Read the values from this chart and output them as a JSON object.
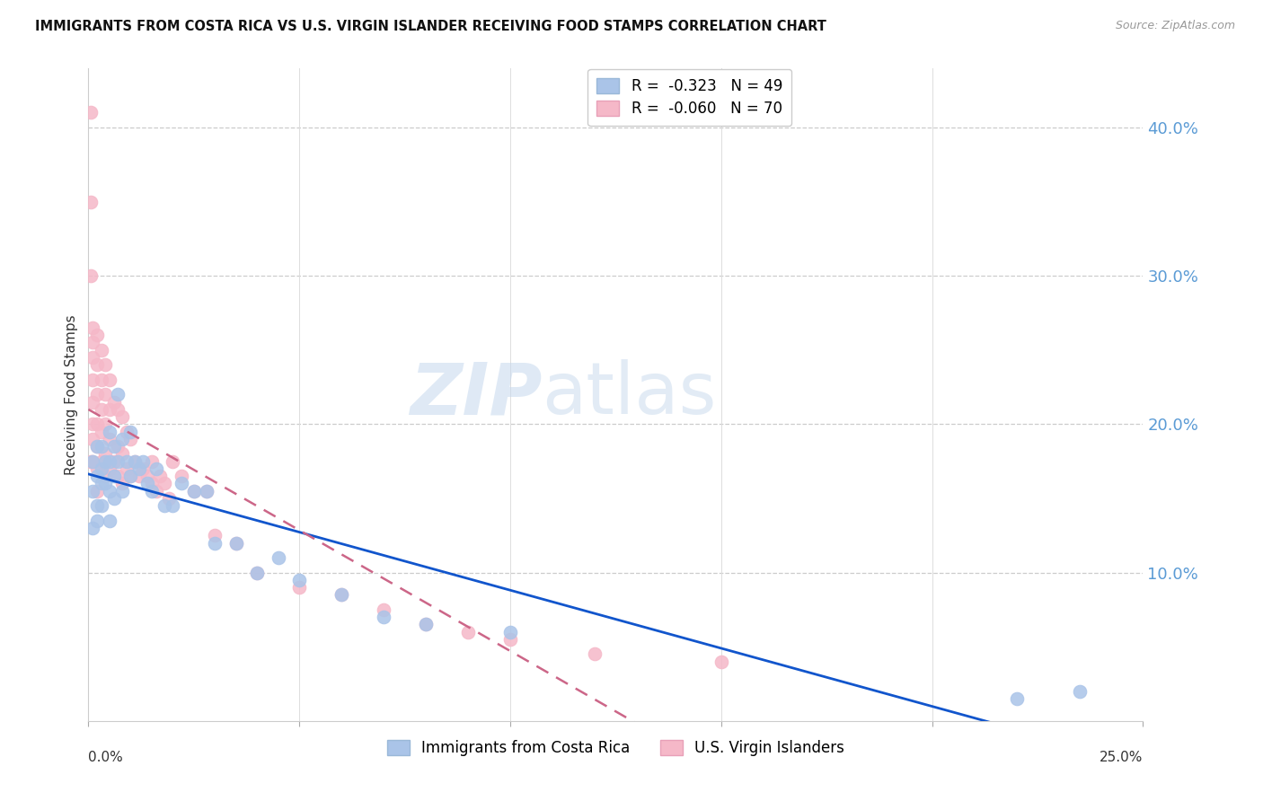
{
  "title": "IMMIGRANTS FROM COSTA RICA VS U.S. VIRGIN ISLANDER RECEIVING FOOD STAMPS CORRELATION CHART",
  "source": "Source: ZipAtlas.com",
  "ylabel": "Receiving Food Stamps",
  "y_ticks_right_vals": [
    0.1,
    0.2,
    0.3,
    0.4
  ],
  "y_ticks_right_labels": [
    "10.0%",
    "20.0%",
    "30.0%",
    "40.0%"
  ],
  "xlim": [
    0.0,
    0.25
  ],
  "ylim": [
    0.0,
    0.44
  ],
  "costa_rica_color": "#aac4e8",
  "virgin_color": "#f5b8c8",
  "costa_rica_line_color": "#1155cc",
  "virgin_line_color": "#cc6688",
  "costa_rica_R": -0.323,
  "costa_rica_N": 49,
  "virgin_R": -0.06,
  "virgin_N": 70,
  "watermark_zip": "ZIP",
  "watermark_atlas": "atlas",
  "background_color": "#ffffff",
  "costa_rica_x": [
    0.001,
    0.001,
    0.001,
    0.002,
    0.002,
    0.002,
    0.002,
    0.003,
    0.003,
    0.003,
    0.003,
    0.004,
    0.004,
    0.005,
    0.005,
    0.005,
    0.005,
    0.006,
    0.006,
    0.006,
    0.007,
    0.007,
    0.008,
    0.008,
    0.009,
    0.01,
    0.01,
    0.011,
    0.012,
    0.013,
    0.014,
    0.015,
    0.016,
    0.018,
    0.02,
    0.022,
    0.025,
    0.028,
    0.03,
    0.035,
    0.04,
    0.045,
    0.05,
    0.06,
    0.07,
    0.08,
    0.1,
    0.22,
    0.235
  ],
  "costa_rica_y": [
    0.175,
    0.155,
    0.13,
    0.185,
    0.165,
    0.145,
    0.135,
    0.185,
    0.17,
    0.16,
    0.145,
    0.175,
    0.16,
    0.195,
    0.175,
    0.155,
    0.135,
    0.185,
    0.165,
    0.15,
    0.22,
    0.175,
    0.19,
    0.155,
    0.175,
    0.195,
    0.165,
    0.175,
    0.17,
    0.175,
    0.16,
    0.155,
    0.17,
    0.145,
    0.145,
    0.16,
    0.155,
    0.155,
    0.12,
    0.12,
    0.1,
    0.11,
    0.095,
    0.085,
    0.07,
    0.065,
    0.06,
    0.015,
    0.02
  ],
  "virgin_x": [
    0.0005,
    0.0005,
    0.0005,
    0.0005,
    0.001,
    0.001,
    0.001,
    0.001,
    0.001,
    0.001,
    0.001,
    0.001,
    0.002,
    0.002,
    0.002,
    0.002,
    0.002,
    0.002,
    0.002,
    0.003,
    0.003,
    0.003,
    0.003,
    0.003,
    0.004,
    0.004,
    0.004,
    0.004,
    0.004,
    0.005,
    0.005,
    0.005,
    0.005,
    0.006,
    0.006,
    0.007,
    0.007,
    0.007,
    0.008,
    0.008,
    0.008,
    0.009,
    0.009,
    0.01,
    0.01,
    0.011,
    0.012,
    0.013,
    0.014,
    0.015,
    0.015,
    0.016,
    0.017,
    0.018,
    0.019,
    0.02,
    0.022,
    0.025,
    0.028,
    0.03,
    0.035,
    0.04,
    0.05,
    0.06,
    0.07,
    0.08,
    0.09,
    0.1,
    0.12,
    0.15
  ],
  "virgin_y": [
    0.41,
    0.35,
    0.3,
    0.175,
    0.265,
    0.255,
    0.245,
    0.23,
    0.215,
    0.2,
    0.19,
    0.175,
    0.26,
    0.24,
    0.22,
    0.2,
    0.185,
    0.17,
    0.155,
    0.25,
    0.23,
    0.21,
    0.195,
    0.175,
    0.24,
    0.22,
    0.2,
    0.18,
    0.165,
    0.23,
    0.21,
    0.19,
    0.17,
    0.215,
    0.175,
    0.21,
    0.185,
    0.165,
    0.205,
    0.18,
    0.16,
    0.195,
    0.17,
    0.19,
    0.165,
    0.175,
    0.165,
    0.17,
    0.165,
    0.175,
    0.16,
    0.155,
    0.165,
    0.16,
    0.15,
    0.175,
    0.165,
    0.155,
    0.155,
    0.125,
    0.12,
    0.1,
    0.09,
    0.085,
    0.075,
    0.065,
    0.06,
    0.055,
    0.045,
    0.04
  ]
}
